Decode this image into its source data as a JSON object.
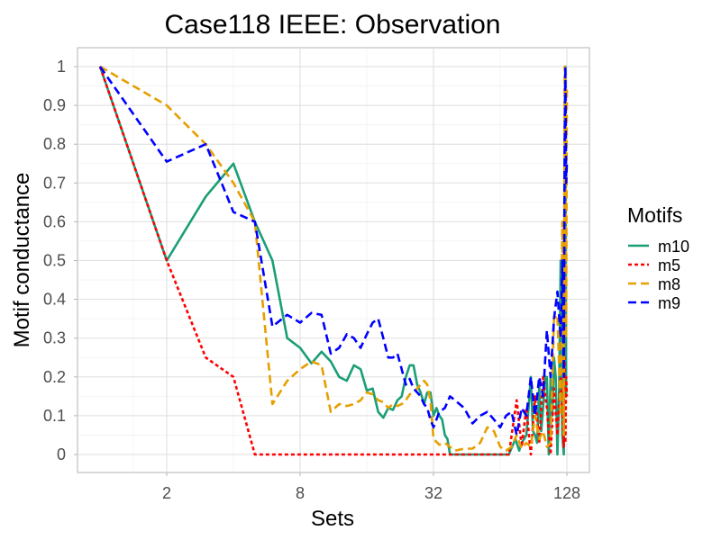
{
  "chart_data": {
    "type": "line",
    "title": "Case118 IEEE: Observation",
    "xlabel": "Sets",
    "ylabel": "Motif conductance",
    "x_scale": "log2",
    "xlim": [
      1,
      128
    ],
    "ylim": [
      0,
      1
    ],
    "x_ticks": [
      2,
      8,
      32,
      128
    ],
    "x_tick_labels": [
      "2",
      "8",
      "32",
      "128"
    ],
    "y_ticks": [
      0,
      0.1,
      0.2,
      0.3,
      0.4,
      0.5,
      0.6,
      0.7,
      0.8,
      0.9,
      1
    ],
    "y_tick_labels": [
      "0",
      "0.1",
      "0.2",
      "0.3",
      "0.4",
      "0.5",
      "0.6",
      "0.7",
      "0.8",
      "0.9",
      "1"
    ],
    "grid": true,
    "legend": {
      "title": "Motifs",
      "position": "right"
    },
    "series": [
      {
        "name": "m10",
        "color": "#1b9e77",
        "dash": "solid",
        "x": [
          1,
          2,
          3,
          4,
          5,
          6,
          7,
          8,
          9,
          10,
          11,
          12,
          13,
          14,
          15,
          16,
          17,
          18,
          19,
          20,
          21,
          22,
          23,
          24,
          25,
          26,
          27,
          28,
          29,
          30,
          31,
          32,
          33,
          34,
          35,
          36,
          37,
          38,
          40,
          45,
          50,
          55,
          60,
          65,
          70,
          75,
          78,
          80,
          82,
          84,
          86,
          88,
          90,
          92,
          94,
          96,
          98,
          100,
          102,
          104,
          106,
          108,
          110,
          112,
          114,
          116,
          118,
          120,
          122,
          124,
          125,
          126,
          127,
          128
        ],
        "y": [
          1,
          0.5,
          0.665,
          0.75,
          0.6,
          0.5,
          0.3,
          0.275,
          0.235,
          0.265,
          0.24,
          0.2,
          0.19,
          0.23,
          0.22,
          0.165,
          0.17,
          0.11,
          0.095,
          0.12,
          0.115,
          0.14,
          0.15,
          0.2,
          0.23,
          0.23,
          0.18,
          0.16,
          0.13,
          0.16,
          0.16,
          0.1,
          0.12,
          0.1,
          0.09,
          0.05,
          0.04,
          0,
          0,
          0,
          0,
          0,
          0,
          0,
          0,
          0.04,
          0.01,
          0.03,
          0.04,
          0.05,
          0.12,
          0.2,
          0.06,
          0.05,
          0.03,
          0.18,
          0.06,
          0.12,
          0.2,
          0.2,
          0,
          0.2,
          0.1,
          0.25,
          0.2,
          0,
          0.15,
          0.5,
          0.05,
          0,
          0.6,
          1,
          0.15,
          0.15
        ]
      },
      {
        "name": "m5",
        "color": "#ff0000",
        "dash": "4,3",
        "x": [
          1,
          2,
          3,
          4,
          5,
          6,
          7,
          8,
          10,
          12,
          16,
          20,
          24,
          28,
          32,
          40,
          50,
          60,
          70,
          76,
          80,
          84,
          88,
          92,
          96,
          100,
          104,
          108,
          112,
          116,
          120,
          124,
          125,
          126,
          127,
          128
        ],
        "y": [
          1,
          0.5,
          0.25,
          0.2,
          0,
          0,
          0,
          0,
          0,
          0,
          0,
          0,
          0,
          0,
          0,
          0,
          0,
          0,
          0,
          0.14,
          0.02,
          0.12,
          0,
          0.15,
          0.03,
          0.2,
          0.12,
          0,
          0.17,
          0.05,
          0.2,
          0.02,
          0.25,
          0.03,
          0.2,
          0.15
        ]
      },
      {
        "name": "m8",
        "color": "#e69f00",
        "dash": "9,5",
        "x": [
          1,
          2,
          3,
          4,
          5,
          6,
          7,
          8,
          9,
          10,
          11,
          12,
          13,
          14,
          15,
          16,
          17,
          18,
          19,
          20,
          21,
          22,
          23,
          24,
          25,
          26,
          27,
          28,
          29,
          30,
          31,
          32,
          34,
          36,
          40,
          44,
          48,
          52,
          56,
          60,
          64,
          68,
          72,
          76,
          80,
          84,
          88,
          92,
          96,
          100,
          104,
          108,
          112,
          116,
          120,
          122,
          124,
          125,
          126,
          127,
          128
        ],
        "y": [
          1,
          0.9,
          0.8,
          0.7,
          0.6,
          0.13,
          0.19,
          0.22,
          0.24,
          0.23,
          0.11,
          0.13,
          0.125,
          0.13,
          0.14,
          0.16,
          0.155,
          0.14,
          0.135,
          0.12,
          0.13,
          0.125,
          0.13,
          0.14,
          0.155,
          0.16,
          0.17,
          0.18,
          0.19,
          0.18,
          0.14,
          0.04,
          0.025,
          0.03,
          0.01,
          0.015,
          0.015,
          0.03,
          0.07,
          0.06,
          0.02,
          0.01,
          0.02,
          0.05,
          0.015,
          0.03,
          0.02,
          0.1,
          0.04,
          0.06,
          0.02,
          0.03,
          0.35,
          0.36,
          0.1,
          0.6,
          0.05,
          1,
          0.95,
          0.3,
          0.95
        ]
      },
      {
        "name": "m9",
        "color": "#0000ff",
        "dash": "9,5",
        "x": [
          1,
          2,
          3,
          4,
          5,
          6,
          7,
          8,
          9,
          10,
          11,
          12,
          13,
          14,
          15,
          16,
          17,
          18,
          19,
          20,
          21,
          22,
          23,
          24,
          25,
          26,
          27,
          28,
          29,
          30,
          31,
          32,
          34,
          36,
          38,
          40,
          44,
          48,
          52,
          56,
          60,
          64,
          68,
          72,
          76,
          80,
          84,
          88,
          92,
          96,
          100,
          104,
          108,
          112,
          116,
          120,
          122,
          124,
          125,
          126,
          127,
          128
        ],
        "y": [
          1,
          0.755,
          0.8,
          0.625,
          0.6,
          0.33,
          0.36,
          0.34,
          0.365,
          0.36,
          0.26,
          0.275,
          0.31,
          0.3,
          0.275,
          0.31,
          0.34,
          0.35,
          0.3,
          0.25,
          0.25,
          0.26,
          0.22,
          0.18,
          0.195,
          0.17,
          0.16,
          0.15,
          0.13,
          0.12,
          0.09,
          0.07,
          0.11,
          0.12,
          0.15,
          0.14,
          0.12,
          0.08,
          0.1,
          0.11,
          0.09,
          0.07,
          0.1,
          0.11,
          0.05,
          0.12,
          0.1,
          0.2,
          0.1,
          0.2,
          0.15,
          0.32,
          0.2,
          0.35,
          0.42,
          0.3,
          0.5,
          0.2,
          0.8,
          1,
          0.7,
          0.75
        ]
      }
    ]
  }
}
